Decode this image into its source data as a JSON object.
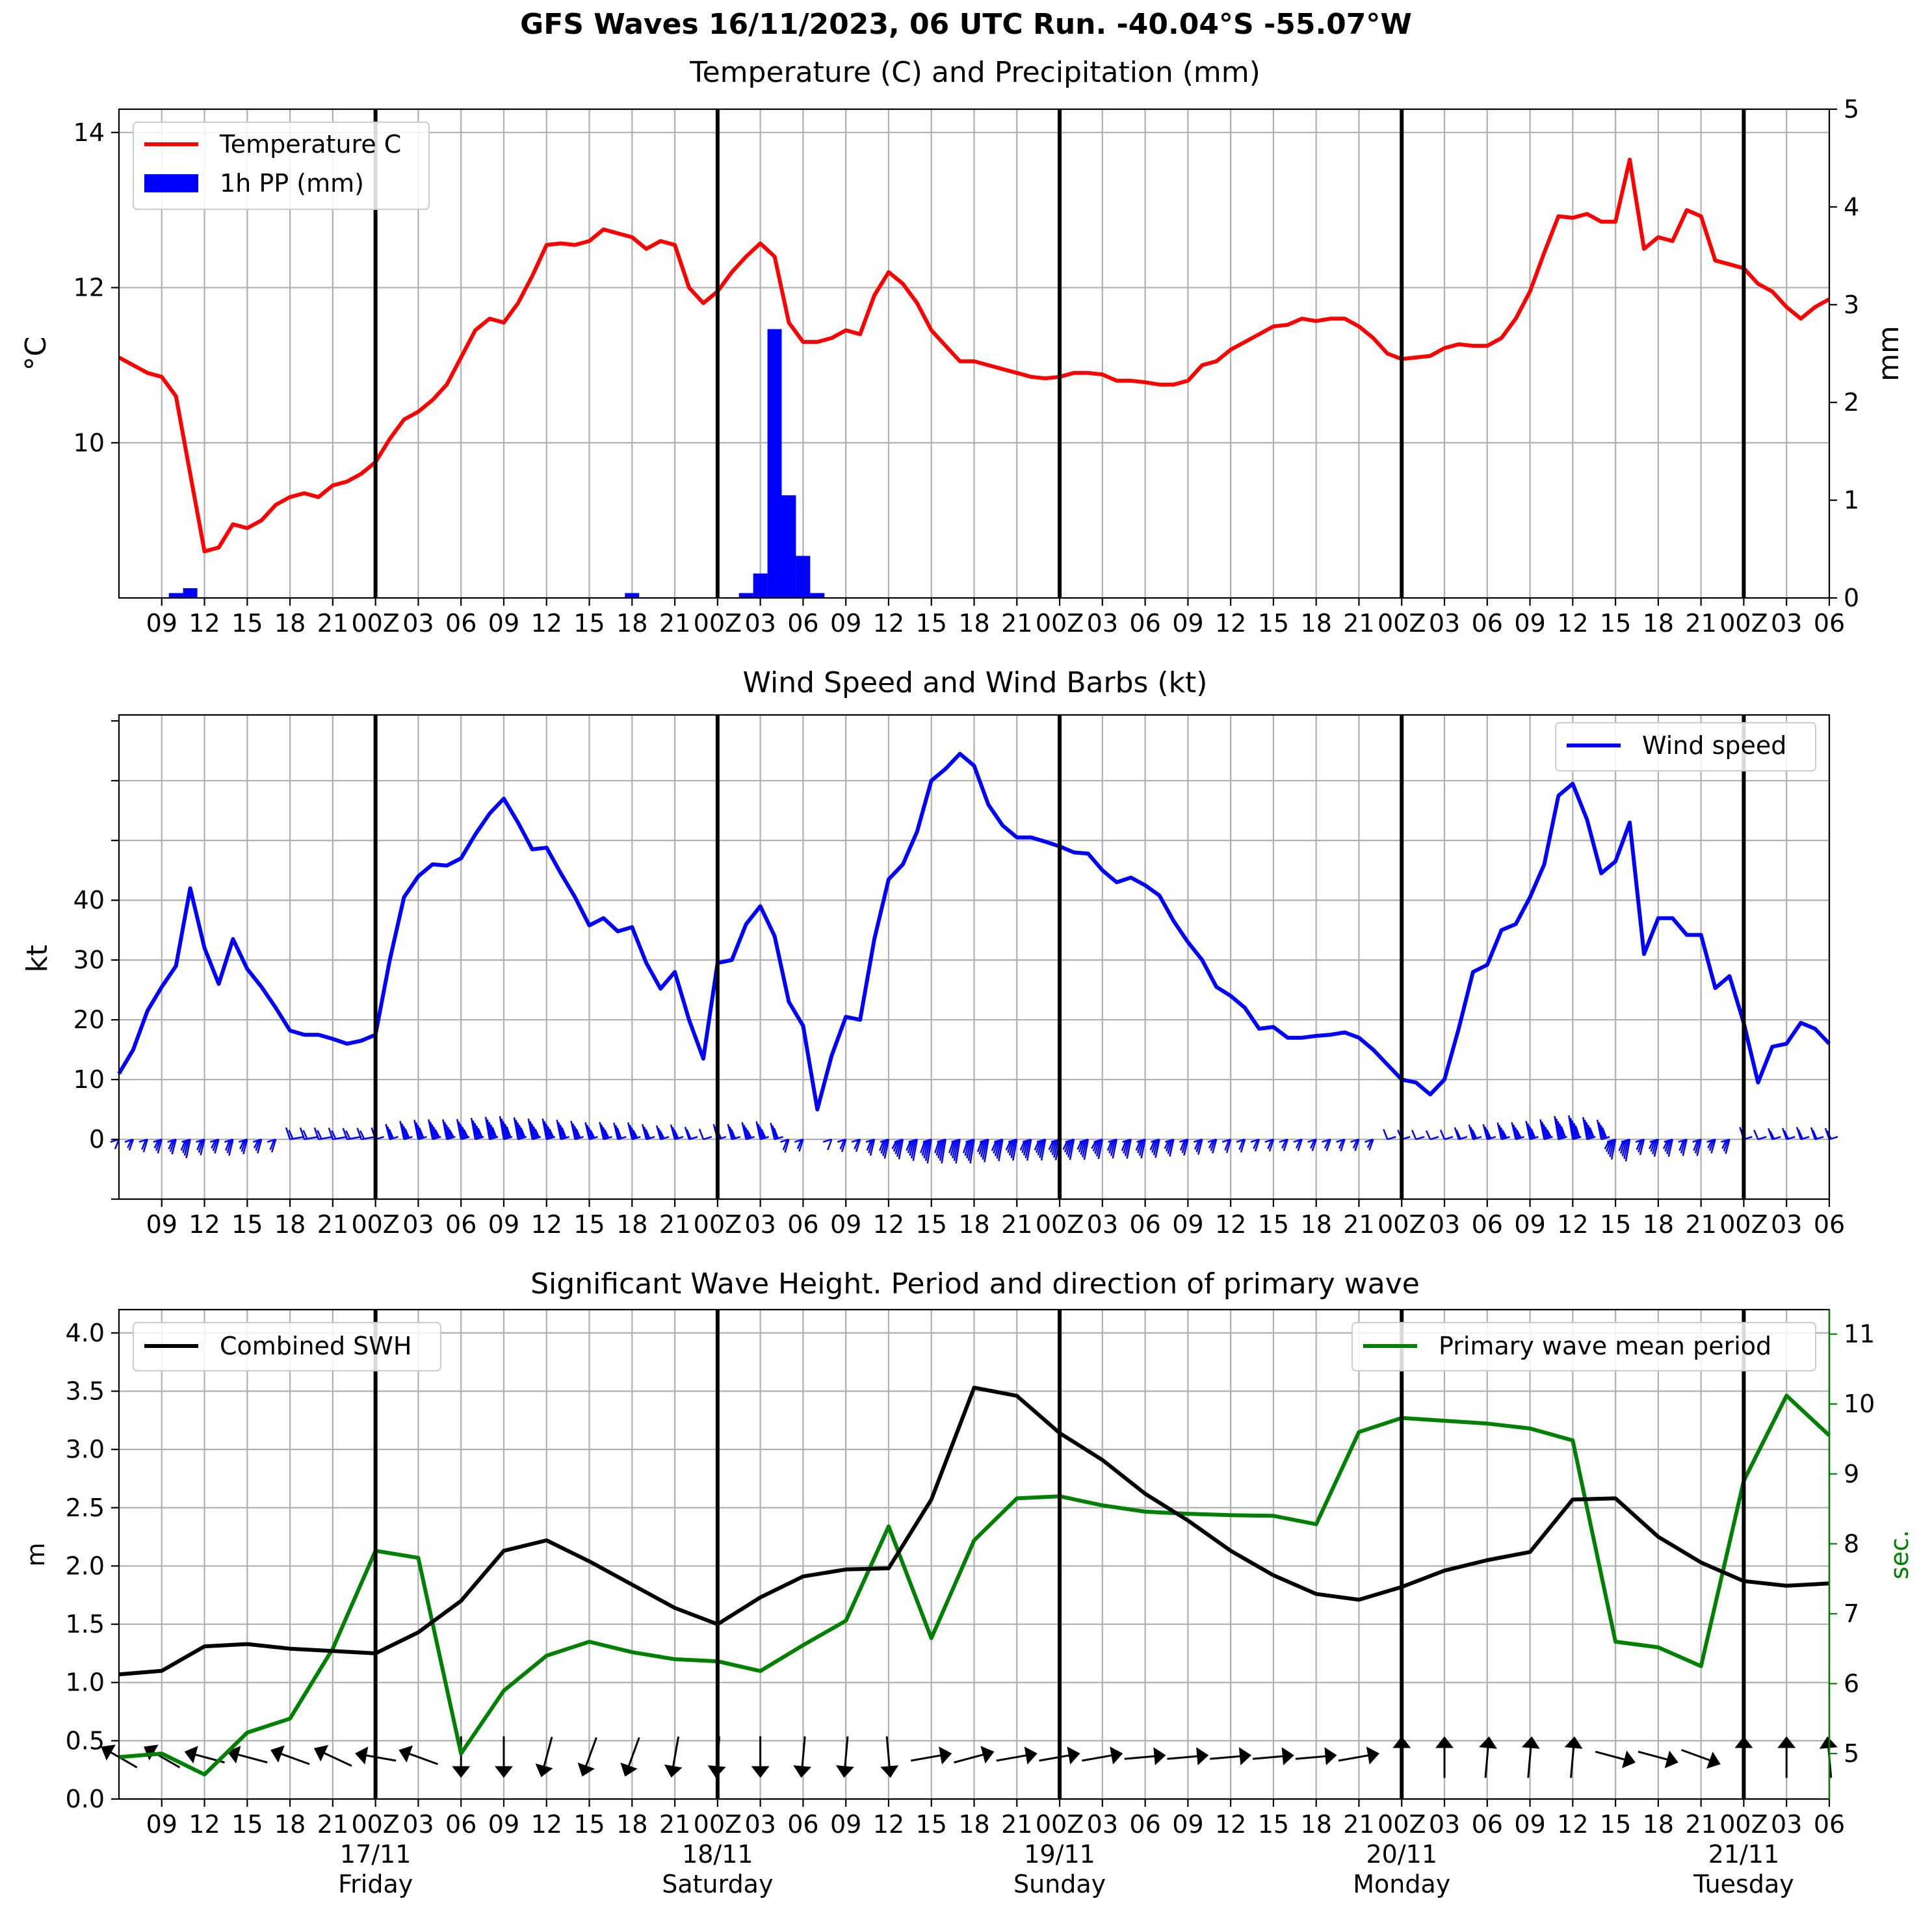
{
  "suptitle": "GFS Waves 16/11/2023, 06 UTC Run. -40.04°S -55.07°W",
  "x_tick_labels": [
    "09",
    "12",
    "15",
    "18",
    "21",
    "00Z",
    "03",
    "06",
    "09",
    "12",
    "15",
    "18",
    "21",
    "00Z",
    "03",
    "06",
    "09",
    "12",
    "15",
    "18",
    "21",
    "00Z",
    "03",
    "06",
    "09",
    "12",
    "15",
    "18",
    "21",
    "00Z",
    "03",
    "06",
    "09",
    "12",
    "15",
    "18",
    "21",
    "00Z",
    "03",
    "06"
  ],
  "day_labels": [
    {
      "date": "17/11",
      "weekday": "Friday"
    },
    {
      "date": "18/11",
      "weekday": "Saturday"
    },
    {
      "date": "19/11",
      "weekday": "Sunday"
    },
    {
      "date": "20/11",
      "weekday": "Monday"
    },
    {
      "date": "21/11",
      "weekday": "Tuesday"
    }
  ],
  "panel1": {
    "title": "Temperature (C) and Precipitation (mm)",
    "ylabel_left": "°C",
    "ylabel_right": "mm",
    "legend": [
      "Temperature C",
      "1h PP (mm)"
    ],
    "y_ticks_left": [
      "10",
      "12",
      "14"
    ],
    "y_ticks_right": [
      "0",
      "1",
      "2",
      "3",
      "4",
      "5"
    ],
    "colors": {
      "temperature": "#ff0000",
      "precip": "#0000ff"
    }
  },
  "panel2": {
    "title": "Wind Speed and Wind Barbs (kt)",
    "ylabel": "kt",
    "legend": [
      "Wind speed"
    ],
    "y_ticks": [
      "0",
      "10",
      "20",
      "30",
      "40"
    ],
    "colors": {
      "wind": "#0000ff"
    }
  },
  "panel3": {
    "title": "Significant Wave Height. Period and direction of primary wave",
    "ylabel_left": "m",
    "ylabel_right": "sec.",
    "legend_left": "Combined SWH",
    "legend_right": "Primary wave mean period",
    "y_ticks_left": [
      "0.0",
      "0.5",
      "1.0",
      "1.5",
      "2.0",
      "2.5",
      "3.0",
      "3.5",
      "4.0"
    ],
    "y_ticks_right": [
      "5",
      "6",
      "7",
      "8",
      "9",
      "10",
      "11"
    ],
    "colors": {
      "swh": "#000000",
      "period": "#008000"
    }
  },
  "chart_data": [
    {
      "type": "line",
      "title": "Temperature (C) and Precipitation (mm)",
      "x_unit": "hours since 16/11 06Z",
      "xlim": [
        0,
        120
      ],
      "series": [
        {
          "name": "Temperature C",
          "axis": "left",
          "ylim": [
            8,
            14.3
          ],
          "x": [
            0,
            1,
            2,
            3,
            4,
            5,
            6,
            7,
            8,
            9,
            10,
            11,
            12,
            13,
            14,
            15,
            16,
            17,
            18,
            19,
            20,
            21,
            22,
            23,
            24,
            25,
            26,
            27,
            28,
            29,
            30,
            31,
            32,
            33,
            34,
            35,
            36,
            37,
            38,
            39,
            40,
            41,
            42,
            43,
            44,
            45,
            46,
            47,
            48,
            49,
            50,
            51,
            52,
            53,
            54,
            55,
            56,
            57,
            58,
            59,
            60,
            61,
            62,
            63,
            64,
            65,
            66,
            67,
            68,
            69,
            70,
            71,
            72,
            73,
            74,
            75,
            76,
            77,
            78,
            79,
            80,
            81,
            82,
            83,
            84,
            85,
            86,
            87,
            88,
            89,
            90,
            91,
            92,
            93,
            94,
            95,
            96,
            97,
            98,
            99,
            100,
            101,
            102,
            103,
            104,
            105,
            106,
            107,
            108,
            109,
            110,
            111,
            112,
            113,
            114,
            115,
            116,
            117,
            118,
            119,
            120
          ],
          "y": [
            11.1,
            11.0,
            10.9,
            10.85,
            10.6,
            9.6,
            8.6,
            8.65,
            8.95,
            8.9,
            9.0,
            9.2,
            9.3,
            9.35,
            9.3,
            9.45,
            9.5,
            9.6,
            9.75,
            10.05,
            10.3,
            10.4,
            10.55,
            10.75,
            11.1,
            11.45,
            11.6,
            11.55,
            11.8,
            12.15,
            12.55,
            12.57,
            12.55,
            12.6,
            12.75,
            12.7,
            12.65,
            12.5,
            12.6,
            12.55,
            12.0,
            11.8,
            11.95,
            12.2,
            12.4,
            12.57,
            12.4,
            11.55,
            11.3,
            11.3,
            11.35,
            11.45,
            11.4,
            11.9,
            12.2,
            12.05,
            11.8,
            11.45,
            11.25,
            11.05,
            11.05,
            11.0,
            10.95,
            10.9,
            10.85,
            10.83,
            10.85,
            10.9,
            10.9,
            10.88,
            10.8,
            10.8,
            10.78,
            10.75,
            10.75,
            10.8,
            11.0,
            11.05,
            11.2,
            11.3,
            11.4,
            11.5,
            11.52,
            11.6,
            11.57,
            11.6,
            11.6,
            11.5,
            11.35,
            11.15,
            11.08,
            11.1,
            11.12,
            11.22,
            11.27,
            11.25,
            11.25,
            11.35,
            11.6,
            11.95,
            12.45,
            12.92,
            12.9,
            12.95,
            12.85,
            12.85,
            13.65,
            12.5,
            12.65,
            12.6,
            13.0,
            12.92,
            12.35,
            12.3,
            12.25,
            12.05,
            11.95,
            11.75,
            11.6,
            11.75,
            11.85
          ]
        },
        {
          "name": "1h PP (mm)",
          "type": "bar",
          "axis": "right",
          "ylim": [
            0,
            5
          ],
          "x": [
            4,
            5,
            36,
            44,
            45,
            46,
            47,
            48,
            49
          ],
          "y": [
            0.05,
            0.1,
            0.05,
            0.05,
            0.25,
            2.75,
            1.05,
            0.43,
            0.05
          ]
        }
      ]
    },
    {
      "type": "line",
      "title": "Wind Speed and Wind Barbs (kt)",
      "x_unit": "hours since 16/11 06Z",
      "xlim": [
        0,
        120
      ],
      "ylim": [
        -10,
        71
      ],
      "series": [
        {
          "name": "Wind speed",
          "x": [
            0,
            1,
            2,
            3,
            4,
            5,
            6,
            7,
            8,
            9,
            10,
            11,
            12,
            13,
            14,
            15,
            16,
            17,
            18,
            19,
            20,
            21,
            22,
            23,
            24,
            25,
            26,
            27,
            28,
            29,
            30,
            31,
            32,
            33,
            34,
            35,
            36,
            37,
            38,
            39,
            40,
            41,
            42,
            43,
            44,
            45,
            46,
            47,
            48,
            49,
            50,
            51,
            52,
            53,
            54,
            55,
            56,
            57,
            58,
            59,
            60,
            61,
            62,
            63,
            64,
            65,
            66,
            67,
            68,
            69,
            70,
            71,
            72,
            73,
            74,
            75,
            76,
            77,
            78,
            79,
            80,
            81,
            82,
            83,
            84,
            85,
            86,
            87,
            88,
            89,
            90,
            91,
            92,
            93,
            94,
            95,
            96,
            97,
            98,
            99,
            100,
            101,
            102,
            103,
            104,
            105,
            106,
            107,
            108,
            109,
            110,
            111,
            112,
            113,
            114,
            115,
            116,
            117,
            118,
            119,
            120
          ],
          "y": [
            11,
            15,
            21.5,
            25.5,
            29,
            42,
            32,
            26,
            33.5,
            28.5,
            25.5,
            22,
            18.2,
            17.5,
            17.5,
            16.8,
            16,
            16.5,
            17.5,
            30,
            40.5,
            44,
            46,
            45.8,
            47,
            51,
            54.5,
            57,
            53,
            48.5,
            48.8,
            44.5,
            40.5,
            35.8,
            37,
            34.8,
            35.5,
            29.5,
            25.2,
            28,
            20,
            13.5,
            29.5,
            30,
            36,
            39,
            34,
            23,
            19,
            5,
            14,
            20.5,
            20,
            33.5,
            43.5,
            46,
            51.5,
            60,
            62,
            64.5,
            62.5,
            56,
            52.5,
            50.5,
            50.5,
            49.8,
            49,
            48,
            47.8,
            45,
            43,
            43.8,
            42.5,
            40.8,
            36.5,
            33,
            30,
            25.5,
            24,
            22,
            18.5,
            18.8,
            17,
            17,
            17.3,
            17.5,
            17.9,
            17,
            15,
            12.5,
            10,
            9.5,
            7.5,
            10,
            18.5,
            28,
            29.2,
            35,
            36,
            40.5,
            46,
            57.5,
            59.5,
            53.5,
            44.5,
            46.5,
            53,
            31,
            37,
            37,
            34.2,
            34.2,
            25.3,
            27.3,
            19.5,
            9.5,
            15.5,
            16,
            19.5,
            18.5,
            16
          ]
        }
      ]
    },
    {
      "type": "line",
      "title": "Significant Wave Height. Period and direction of primary wave",
      "x_unit": "hours since 16/11 06Z",
      "xlim": [
        0,
        120
      ],
      "series": [
        {
          "name": "Combined SWH",
          "axis": "left",
          "ylim": [
            0,
            4.2
          ],
          "x": [
            0,
            3,
            6,
            9,
            12,
            15,
            18,
            21,
            24,
            27,
            30,
            33,
            36,
            39,
            42,
            45,
            48,
            51,
            54,
            57,
            60,
            63,
            66,
            69,
            72,
            75,
            78,
            81,
            84,
            87,
            90,
            93,
            96,
            99,
            102,
            105,
            108,
            111,
            114,
            117,
            120
          ],
          "y": [
            1.07,
            1.1,
            1.31,
            1.33,
            1.29,
            1.27,
            1.25,
            1.43,
            1.7,
            2.13,
            2.22,
            2.04,
            1.84,
            1.64,
            1.5,
            1.73,
            1.91,
            1.97,
            1.98,
            2.57,
            3.53,
            3.46,
            3.14,
            2.91,
            2.62,
            2.39,
            2.13,
            1.92,
            1.76,
            1.71,
            1.82,
            1.96,
            2.05,
            2.12,
            2.57,
            2.58,
            2.25,
            2.03,
            1.87,
            1.83,
            1.85
          ]
        },
        {
          "name": "Primary wave mean period",
          "axis": "right",
          "ylim": [
            4.35,
            11.35
          ],
          "x": [
            0,
            3,
            6,
            9,
            12,
            15,
            18,
            21,
            24,
            27,
            30,
            33,
            36,
            39,
            42,
            45,
            48,
            51,
            54,
            57,
            60,
            63,
            66,
            69,
            72,
            75,
            78,
            81,
            84,
            87,
            90,
            93,
            96,
            99,
            102,
            105,
            108,
            111,
            114,
            117,
            120
          ],
          "y": [
            4.95,
            5.0,
            4.7,
            5.3,
            5.5,
            6.5,
            7.9,
            7.8,
            5.0,
            5.9,
            6.4,
            6.6,
            6.45,
            6.35,
            6.32,
            6.18,
            6.55,
            6.9,
            8.25,
            6.65,
            8.05,
            8.65,
            8.68,
            8.55,
            8.46,
            8.43,
            8.41,
            8.4,
            8.28,
            9.6,
            9.8,
            9.76,
            9.72,
            9.65,
            9.48,
            6.6,
            6.52,
            6.25,
            8.9,
            10.12,
            9.55
          ]
        }
      ]
    }
  ]
}
